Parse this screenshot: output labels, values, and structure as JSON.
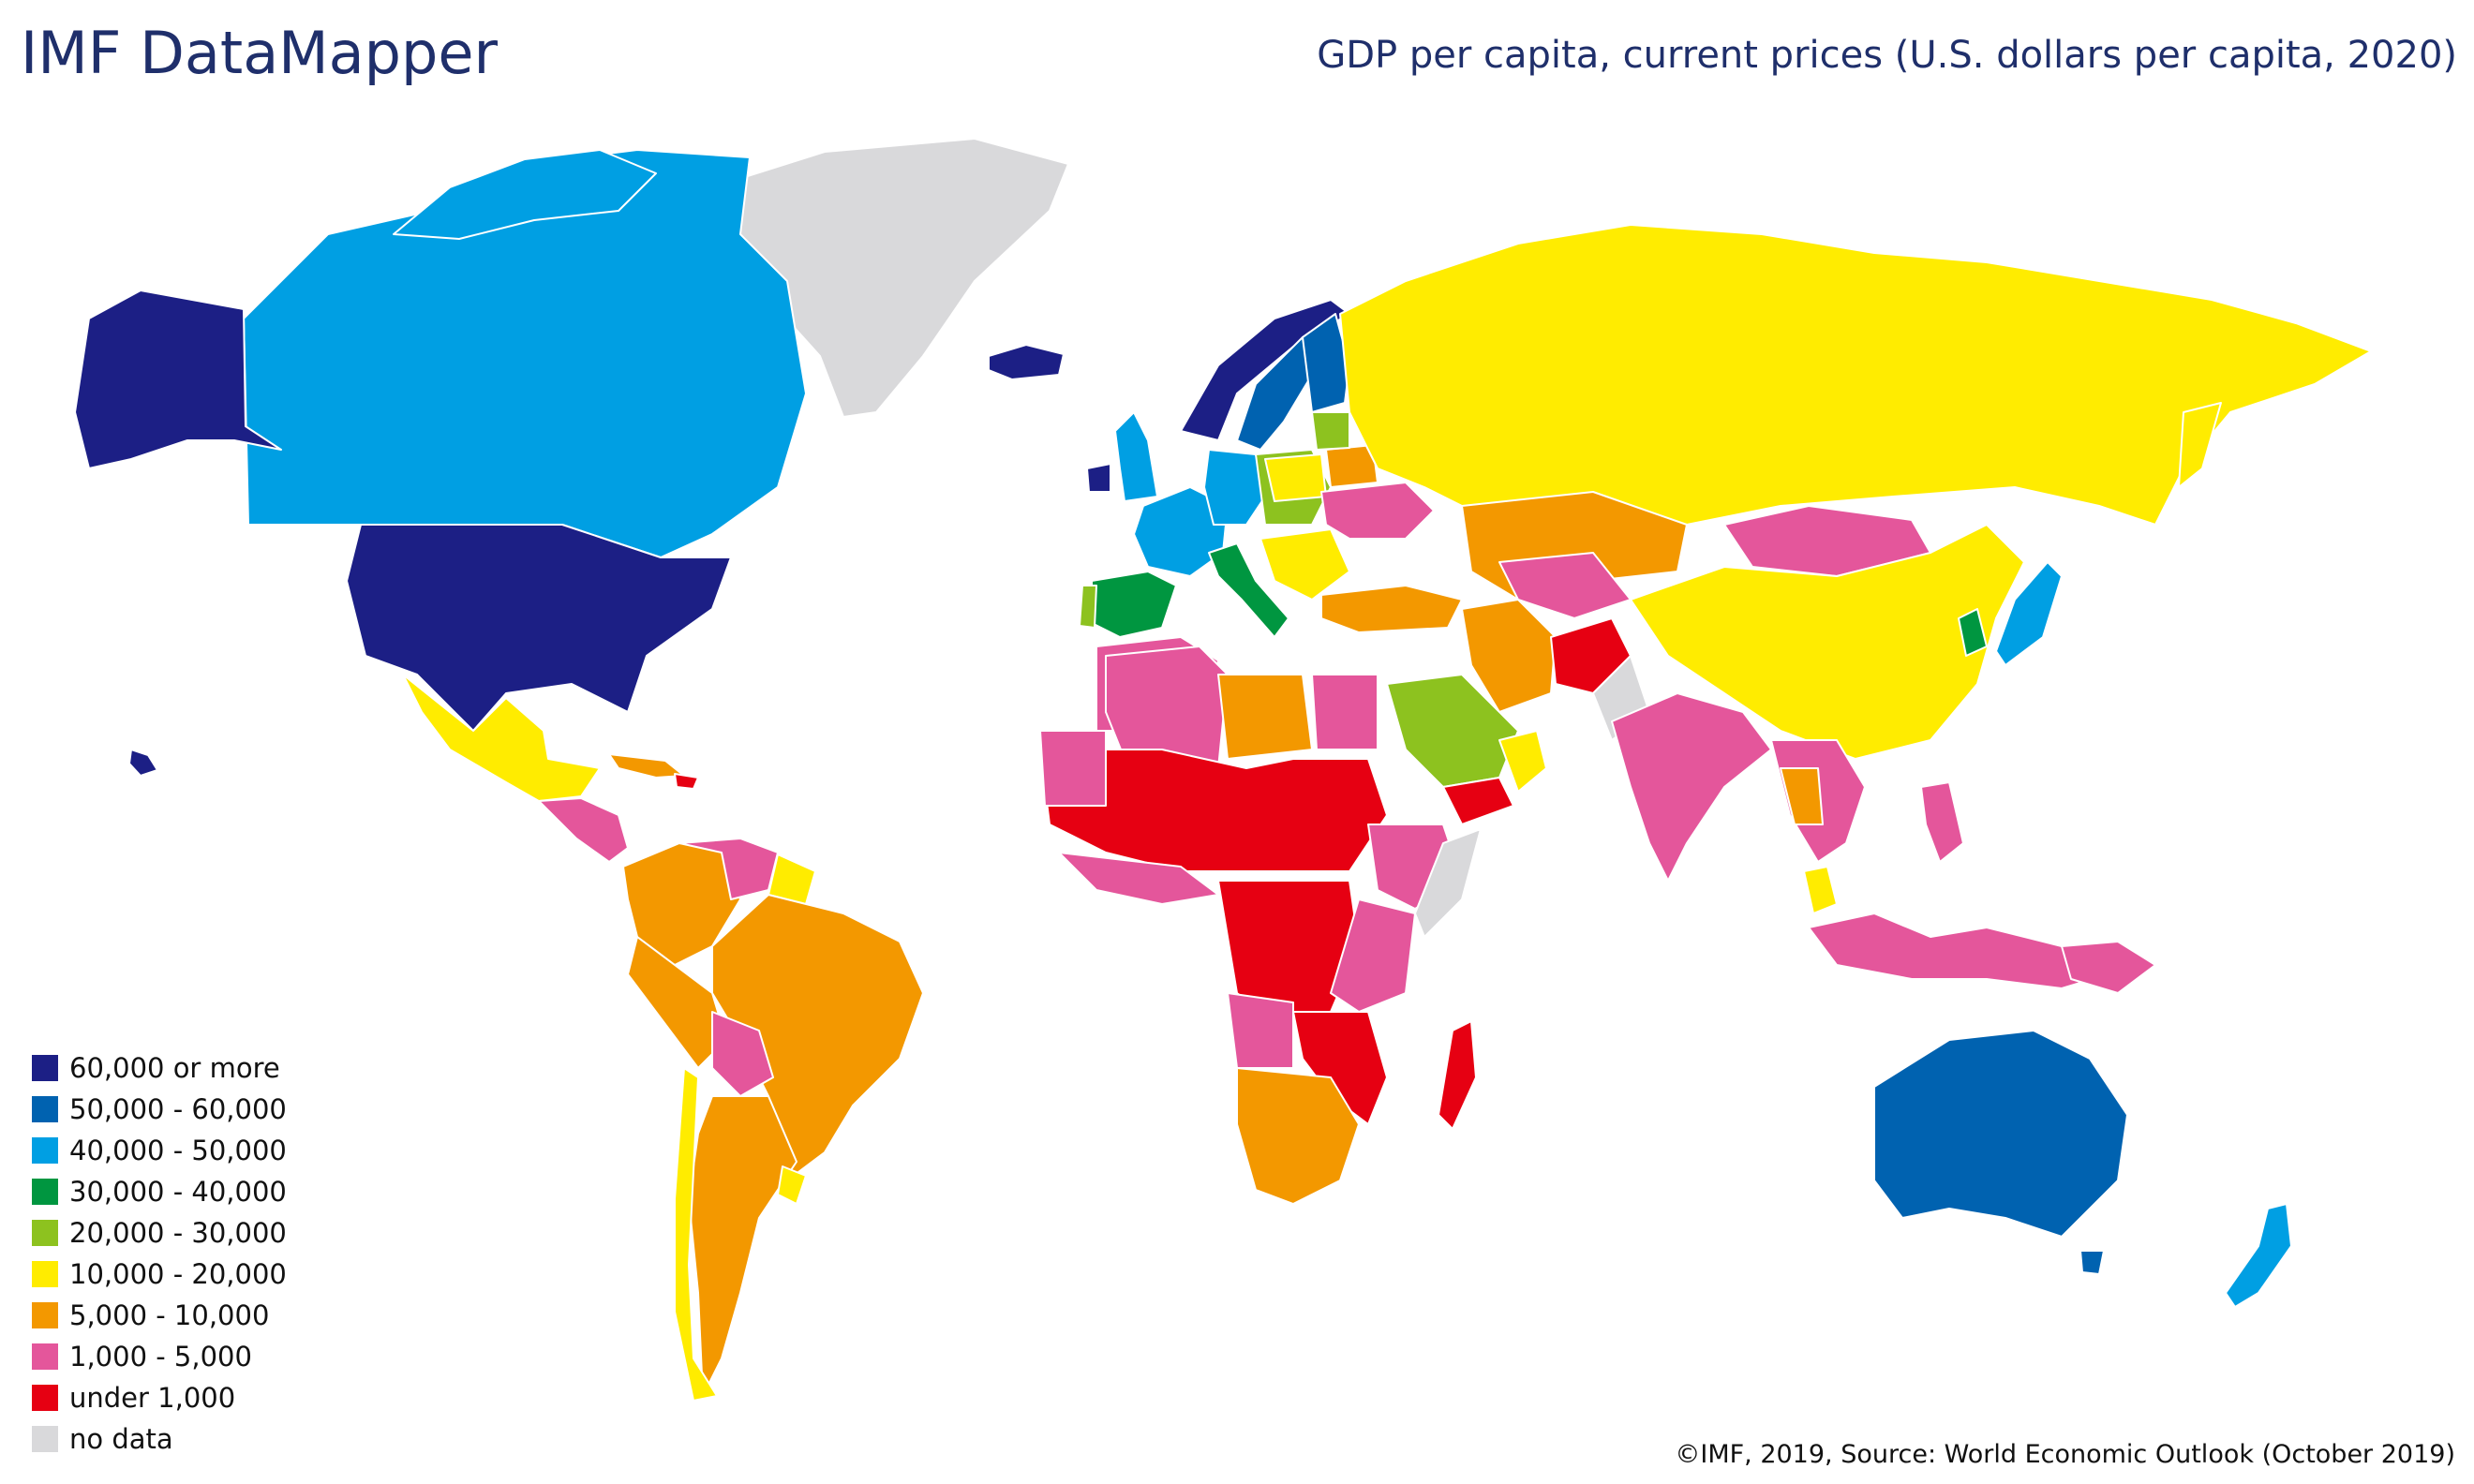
{
  "app_title": "IMF DataMapper",
  "map_title": "GDP per capita, current prices (U.S. dollars per capita, 2020)",
  "footer": "©IMF, 2019, Source: World Economic Outlook (October 2019)",
  "legend": [
    {
      "label": "60,000 or more",
      "color": "#1c1f85"
    },
    {
      "label": "50,000 - 60,000",
      "color": "#0062b0"
    },
    {
      "label": "40,000 - 50,000",
      "color": "#009fe3"
    },
    {
      "label": "30,000 - 40,000",
      "color": "#009640"
    },
    {
      "label": "20,000 - 30,000",
      "color": "#8dc21f"
    },
    {
      "label": "10,000 - 20,000",
      "color": "#ffec00"
    },
    {
      "label": "5,000 - 10,000",
      "color": "#f39800"
    },
    {
      "label": "1,000 - 5,000",
      "color": "#e4569b"
    },
    {
      "label": "under 1,000",
      "color": "#e60012"
    },
    {
      "label": "no data",
      "color": "#d9d9db"
    }
  ]
}
